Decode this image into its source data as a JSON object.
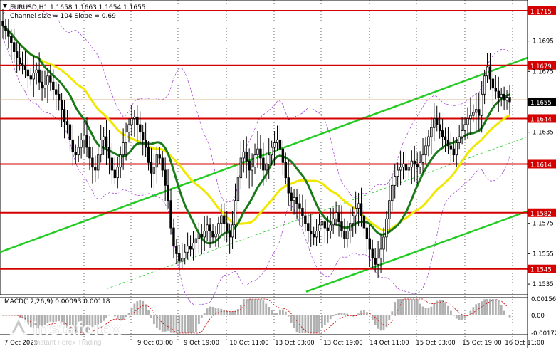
{
  "header": {
    "symbol_line": "EURUSD,H1  1.1658 1.1663 1.1654 1.1655",
    "channel_line": "Channel size = 104 Slope = 0.69"
  },
  "price_axis": {
    "ticks": [
      "1.1695",
      "1.1675",
      "1.1635",
      "1.1575",
      "1.1555",
      "1.1535"
    ]
  },
  "levels": [
    {
      "label": "1.1715",
      "price": 1.1715
    },
    {
      "label": "1.1679",
      "price": 1.1679
    },
    {
      "label": "1.1644",
      "price": 1.1644
    },
    {
      "label": "1.1614",
      "price": 1.1614
    },
    {
      "label": "1.1582",
      "price": 1.1582
    },
    {
      "label": "1.1545",
      "price": 1.1545
    }
  ],
  "current_price": {
    "label": "1.1655",
    "price": 1.1655
  },
  "macd": {
    "label": "MACD(12,26,9) 0.00093 0.00118",
    "ticks": [
      "0.00156",
      "0.00",
      "-0.00172"
    ]
  },
  "time_axis": {
    "labels": [
      "7 Oct 2025",
      "9 Oct 03:00",
      "9 Oct 19:00",
      "10 Oct 11:00",
      "13 Oct 03:00",
      "13 Oct 19:00",
      "14 Oct 11:00",
      "15 Oct 03:00",
      "15 Oct 19:00",
      "16 Oct 11:00"
    ]
  },
  "watermark": {
    "brand": "instaforex",
    "tagline": "Instant Forex Trading"
  },
  "colors": {
    "level_line": "#d40000",
    "level_label_bg": "#d40000",
    "candle": "#000000",
    "ma_fast": "#1a7a1a",
    "ma_slow": "#f0e800",
    "channel": "#22cc22",
    "bollinger": "#9933cc",
    "macd_hist": "#b0b0b0",
    "macd_signal": "#cc0000"
  },
  "chart_data": {
    "type": "line",
    "instrument": "EURUSD",
    "timeframe": "H1",
    "ohlc_last": {
      "open": 1.1658,
      "high": 1.1663,
      "low": 1.1654,
      "close": 1.1655
    },
    "close_series": [
      1.1705,
      1.1702,
      1.1698,
      1.1694,
      1.1688,
      1.1684,
      1.168,
      1.1679,
      1.1676,
      1.1672,
      1.167,
      1.1674,
      1.1676,
      1.1668,
      1.1664,
      1.1666,
      1.1672,
      1.1668,
      1.1663,
      1.166,
      1.1656,
      1.165,
      1.1642,
      1.164,
      1.163,
      1.1622,
      1.162,
      1.1625,
      1.163,
      1.1633,
      1.1625,
      1.1618,
      1.1612,
      1.161,
      1.162,
      1.163,
      1.1632,
      1.1625,
      1.1618,
      1.161,
      1.1605,
      1.1612,
      1.162,
      1.1628,
      1.1635,
      1.164,
      1.1644,
      1.1645,
      1.164,
      1.1635,
      1.163,
      1.1625,
      1.1615,
      1.1608,
      1.1612,
      1.162,
      1.1618,
      1.161,
      1.16,
      1.159,
      1.1572,
      1.156,
      1.1555,
      1.155,
      1.1552,
      1.1556,
      1.156,
      1.1558,
      1.1562,
      1.1565,
      1.1568,
      1.1566,
      1.157,
      1.1574,
      1.157,
      1.1566,
      1.1568,
      1.1575,
      1.158,
      1.1575,
      1.157,
      1.1566,
      1.1574,
      1.159,
      1.1605,
      1.1618,
      1.1622,
      1.1616,
      1.161,
      1.1612,
      1.162,
      1.1624,
      1.1618,
      1.161,
      1.1614,
      1.162,
      1.1625,
      1.1628,
      1.163,
      1.1624,
      1.1615,
      1.1605,
      1.1595,
      1.159,
      1.1592,
      1.1588,
      1.1585,
      1.158,
      1.1575,
      1.157,
      1.1568,
      1.1566,
      1.157,
      1.1574,
      1.1576,
      1.1572,
      1.157,
      1.1574,
      1.1578,
      1.1582,
      1.1576,
      1.157,
      1.1565,
      1.157,
      1.1575,
      1.158,
      1.1585,
      1.1588,
      1.158,
      1.1572,
      1.1565,
      1.1558,
      1.1552,
      1.1548,
      1.1552,
      1.1558,
      1.1566,
      1.1578,
      1.159,
      1.16,
      1.1606,
      1.161,
      1.1612,
      1.1614,
      1.161,
      1.1612,
      1.1616,
      1.1614,
      1.1612,
      1.1615,
      1.162,
      1.1626,
      1.1632,
      1.1638,
      1.1644,
      1.164,
      1.1636,
      1.1632,
      1.163,
      1.1626,
      1.1624,
      1.162,
      1.1628,
      1.1632,
      1.1636,
      1.164,
      1.1644,
      1.1646,
      1.1648,
      1.165,
      1.1646,
      1.166,
      1.1672,
      1.1678,
      1.167,
      1.1664,
      1.1662,
      1.1658,
      1.166,
      1.1656,
      1.1658,
      1.1655
    ],
    "ylim": [
      1.1528,
      1.1722
    ]
  }
}
